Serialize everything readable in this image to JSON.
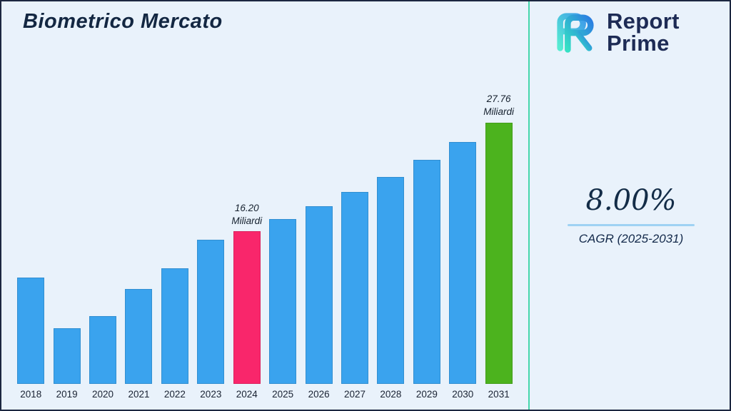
{
  "page": {
    "background": "#e9f2fb",
    "border_color": "#1c2740",
    "divider_color": "#45d6ab"
  },
  "title": "Biometrico Mercato",
  "brand": {
    "line1": "Report",
    "line2": "Prime",
    "logo_gradient_start": "#35e0c4",
    "logo_gradient_end": "#2a7de2",
    "text_color": "#1d2b55"
  },
  "stats": {
    "cagr_value": "8.00%",
    "cagr_label": "CAGR (2025-2031)"
  },
  "chart_data": {
    "type": "bar",
    "title": "Biometrico Mercato",
    "xlabel": "",
    "ylabel": "Miliardi",
    "unit": "Miliardi",
    "ylim": [
      0,
      30
    ],
    "grid": false,
    "legend": false,
    "categories": [
      "2018",
      "2019",
      "2020",
      "2021",
      "2022",
      "2023",
      "2024",
      "2025",
      "2026",
      "2027",
      "2028",
      "2029",
      "2030",
      "2031"
    ],
    "values": [
      11.3,
      5.9,
      7.2,
      10.1,
      12.3,
      15.3,
      16.2,
      17.5,
      18.9,
      20.4,
      22.0,
      23.8,
      25.7,
      27.76
    ],
    "bar_color": "#3aa3ee",
    "highlight_colors": {
      "6": "#f9266b",
      "13": "#4cb31e"
    },
    "annotations": [
      {
        "index": 6,
        "value_text": "16.20",
        "unit_text": "Miliardi"
      },
      {
        "index": 13,
        "value_text": "27.76",
        "unit_text": "Miliardi"
      }
    ]
  }
}
